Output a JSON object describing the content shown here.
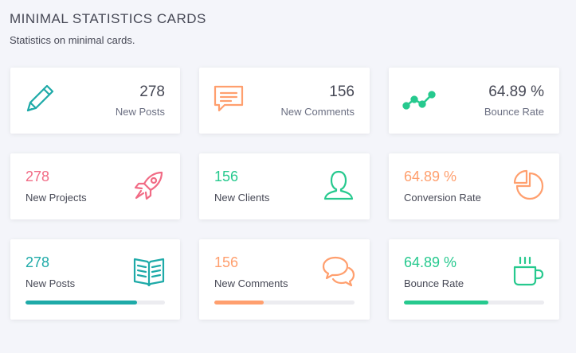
{
  "header": {
    "title": "MINIMAL STATISTICS CARDS",
    "subtitle": "Statistics on minimal cards."
  },
  "colors": {
    "teal": "#1eaaa8",
    "orange": "#ff9f6e",
    "pink": "#f16b85",
    "green": "#26c98e",
    "track": "#ececf0"
  },
  "row1": [
    {
      "value": "278",
      "label": "New Posts",
      "icon": "pencil-icon"
    },
    {
      "value": "156",
      "label": "New Comments",
      "icon": "chat-bubble-icon"
    },
    {
      "value": "64.89 %",
      "label": "Bounce Rate",
      "icon": "trend-line-icon"
    }
  ],
  "row2": [
    {
      "value": "278",
      "label": "New Projects",
      "icon": "rocket-icon"
    },
    {
      "value": "156",
      "label": "New Clients",
      "icon": "user-icon"
    },
    {
      "value": "64.89 %",
      "label": "Conversion Rate",
      "icon": "pie-chart-icon"
    }
  ],
  "row3": [
    {
      "value": "278",
      "label": "New Posts",
      "icon": "book-icon",
      "progress": 0.8
    },
    {
      "value": "156",
      "label": "New Comments",
      "icon": "chat-bubbles-icon",
      "progress": 0.35
    },
    {
      "value": "64.89 %",
      "label": "Bounce Rate",
      "icon": "coffee-cup-icon",
      "progress": 0.6
    }
  ]
}
